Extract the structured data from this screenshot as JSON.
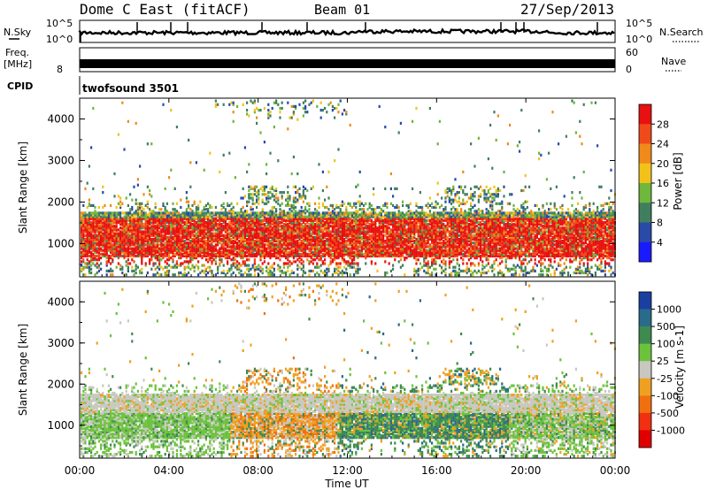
{
  "header": {
    "station": "Dome C East (fitACF)",
    "beam": "Beam 01",
    "date": "27/Sep/2013"
  },
  "noise_panel": {
    "left_label": "N.Sky",
    "right_label": "N.Search",
    "left_ticks": [
      "10^5",
      "10^0"
    ],
    "right_ticks": [
      "10^5",
      "10^0"
    ]
  },
  "freq_panel": {
    "left_label_1": "Freq.",
    "left_label_2": "[MHz]",
    "left_tick": "8",
    "right_label": "Nave",
    "right_ticks": [
      "60",
      "0"
    ]
  },
  "cpid_panel": {
    "label": "CPID",
    "program": "twofsound 3501"
  },
  "chart_data": [
    {
      "type": "heatmap",
      "name": "power",
      "ylabel": "Slant Range [km]",
      "yticks": [
        "1000",
        "2000",
        "3000",
        "4000"
      ],
      "ylim": [
        200,
        4500
      ],
      "xlim": [
        "00:00",
        "24:00"
      ],
      "colorbar": {
        "label": "Power [dB]",
        "ticks": [
          "4",
          "8",
          "12",
          "16",
          "20",
          "24",
          "28"
        ],
        "colors": [
          "#1a1aff",
          "#2a4aa8",
          "#3f7f5f",
          "#6fb63c",
          "#f2c21a",
          "#f08a1a",
          "#f04a1a",
          "#e81010"
        ]
      }
    },
    {
      "type": "heatmap",
      "name": "velocity",
      "ylabel": "Slant Range [km]",
      "yticks": [
        "1000",
        "2000",
        "3000",
        "4000"
      ],
      "ylim": [
        200,
        4500
      ],
      "xlim": [
        "00:00",
        "24:00"
      ],
      "colorbar": {
        "label": "Velocity [m s-1]",
        "ticks": [
          "1000",
          "500",
          "100",
          "25",
          "-25",
          "-100",
          "-500",
          "-1000"
        ],
        "colors": [
          "#1a3fa0",
          "#2a6a8a",
          "#3f8a4f",
          "#6cc23c",
          "#c8c8c0",
          "#f0a020",
          "#f07010",
          "#f03010",
          "#e00000"
        ]
      }
    }
  ],
  "xaxis": {
    "ticks": [
      "00:00",
      "04:00",
      "08:00",
      "12:00",
      "16:00",
      "20:00",
      "00:00"
    ],
    "label": "Time UT"
  }
}
